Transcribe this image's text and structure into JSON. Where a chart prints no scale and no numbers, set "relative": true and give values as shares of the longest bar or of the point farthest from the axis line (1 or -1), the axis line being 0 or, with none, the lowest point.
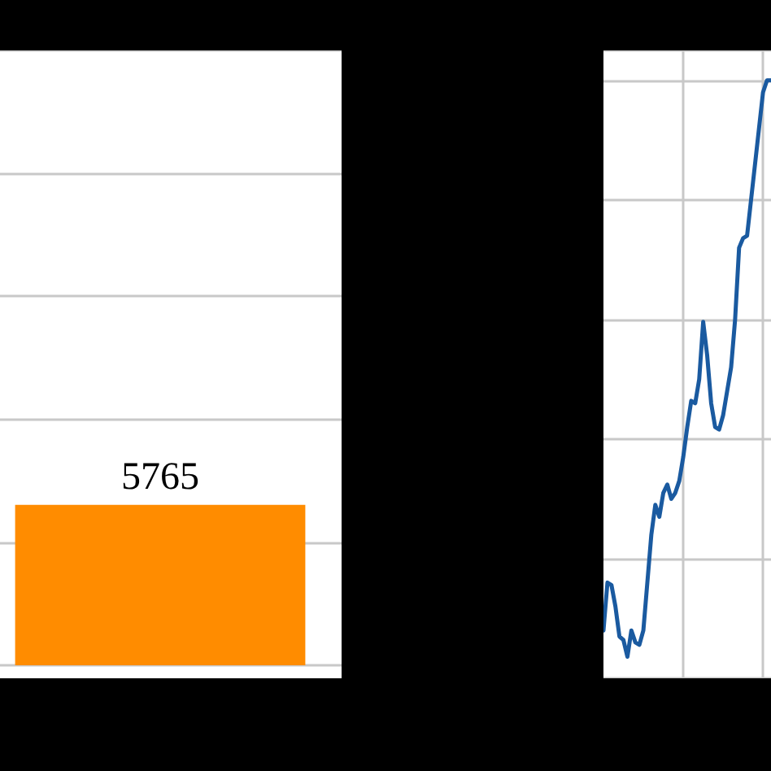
{
  "chart_data": [
    {
      "type": "bar",
      "categories": [
        null
      ],
      "values": [
        5765
      ],
      "color": "#ff8c00",
      "data_labels": true,
      "ylim": [
        0,
        22100
      ],
      "yticks": [
        {
          "value": 0,
          "label": null
        },
        {
          "value": 4420,
          "label": null
        },
        {
          "value": 8840,
          "label": null
        },
        {
          "value": 13260,
          "label": null
        },
        {
          "value": 17680,
          "label": null
        },
        {
          "value": 22100,
          "label": null
        }
      ],
      "grid": "y"
    },
    {
      "type": "line",
      "relative": true,
      "categories": [
        null,
        null,
        null,
        null,
        null,
        null,
        null,
        null,
        null,
        null,
        null,
        null,
        null,
        null,
        null,
        null,
        null,
        null,
        null,
        null,
        null,
        null,
        null,
        null,
        null,
        null,
        null,
        null,
        null,
        null,
        null,
        null,
        null,
        null,
        null,
        null,
        null,
        null,
        null,
        null,
        null,
        null,
        null
      ],
      "series": [
        {
          "color": "#1a5aa0",
          "values": [
            0.08,
            0.16,
            0.156,
            0.12,
            0.07,
            0.064,
            0.036,
            0.08,
            0.06,
            0.056,
            0.08,
            0.16,
            0.24,
            0.29,
            0.27,
            0.31,
            0.324,
            0.3,
            0.31,
            0.33,
            0.37,
            0.42,
            0.464,
            0.46,
            0.5,
            0.596,
            0.54,
            0.46,
            0.42,
            0.416,
            0.44,
            0.48,
            0.52,
            0.6,
            0.72,
            0.736,
            0.74,
            0.8,
            0.86,
            0.92,
            0.98,
            1,
            1
          ]
        }
      ],
      "grid": true,
      "line_style": "solid"
    }
  ]
}
